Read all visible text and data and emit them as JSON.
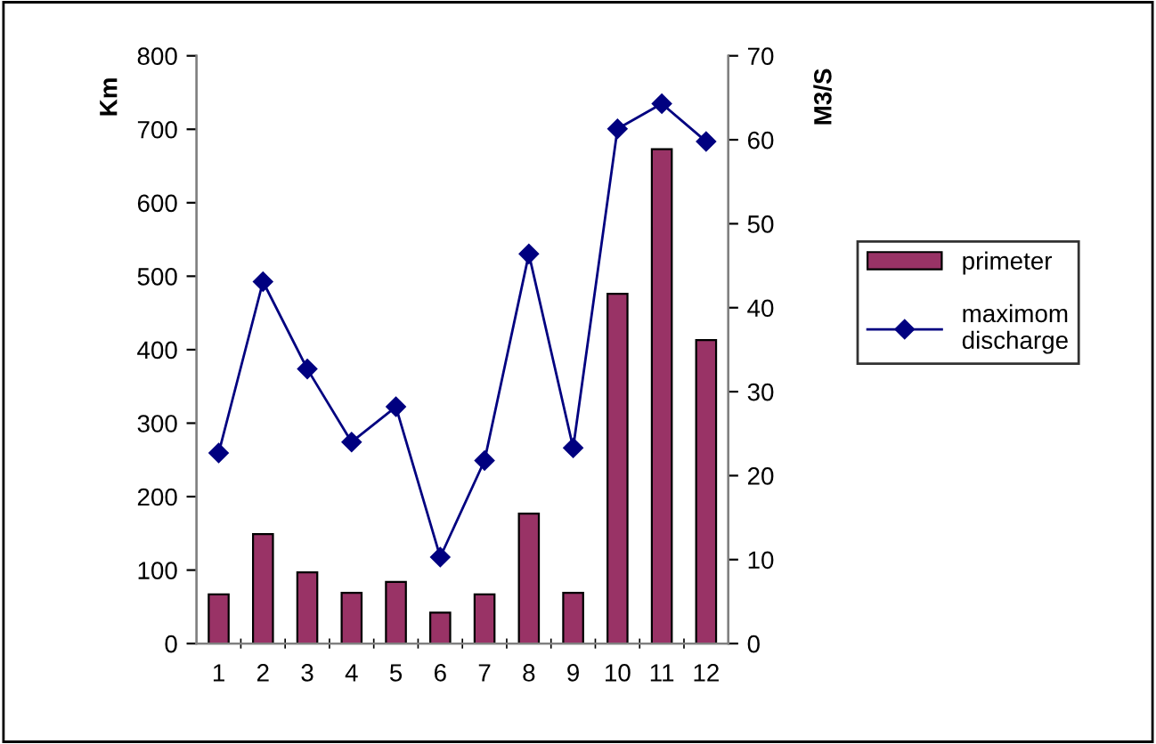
{
  "chart_data": {
    "type": "bar",
    "categories": [
      "1",
      "2",
      "3",
      "4",
      "5",
      "6",
      "7",
      "8",
      "9",
      "10",
      "11",
      "12"
    ],
    "ylabel": "Km",
    "y2label": "M3/S",
    "ylim": [
      0,
      800
    ],
    "yticks": [
      0,
      100,
      200,
      300,
      400,
      500,
      600,
      700,
      800
    ],
    "y2lim": [
      0,
      70
    ],
    "y2ticks": [
      0,
      10,
      20,
      30,
      40,
      50,
      60,
      70
    ],
    "legend": "right",
    "grid": false,
    "series": [
      {
        "name": "primeter",
        "color": "#993366",
        "values": [
          67,
          149,
          97,
          69,
          84,
          42,
          67,
          177,
          69,
          476,
          673,
          413
        ]
      },
      {
        "name": "maximom discharge",
        "type": "line",
        "axis": "y2",
        "color": "#000080",
        "marker": "diamond",
        "values": [
          22.7,
          43.1,
          32.7,
          24.0,
          28.2,
          10.3,
          21.8,
          46.4,
          23.3,
          61.3,
          64.3,
          59.8
        ]
      }
    ]
  }
}
